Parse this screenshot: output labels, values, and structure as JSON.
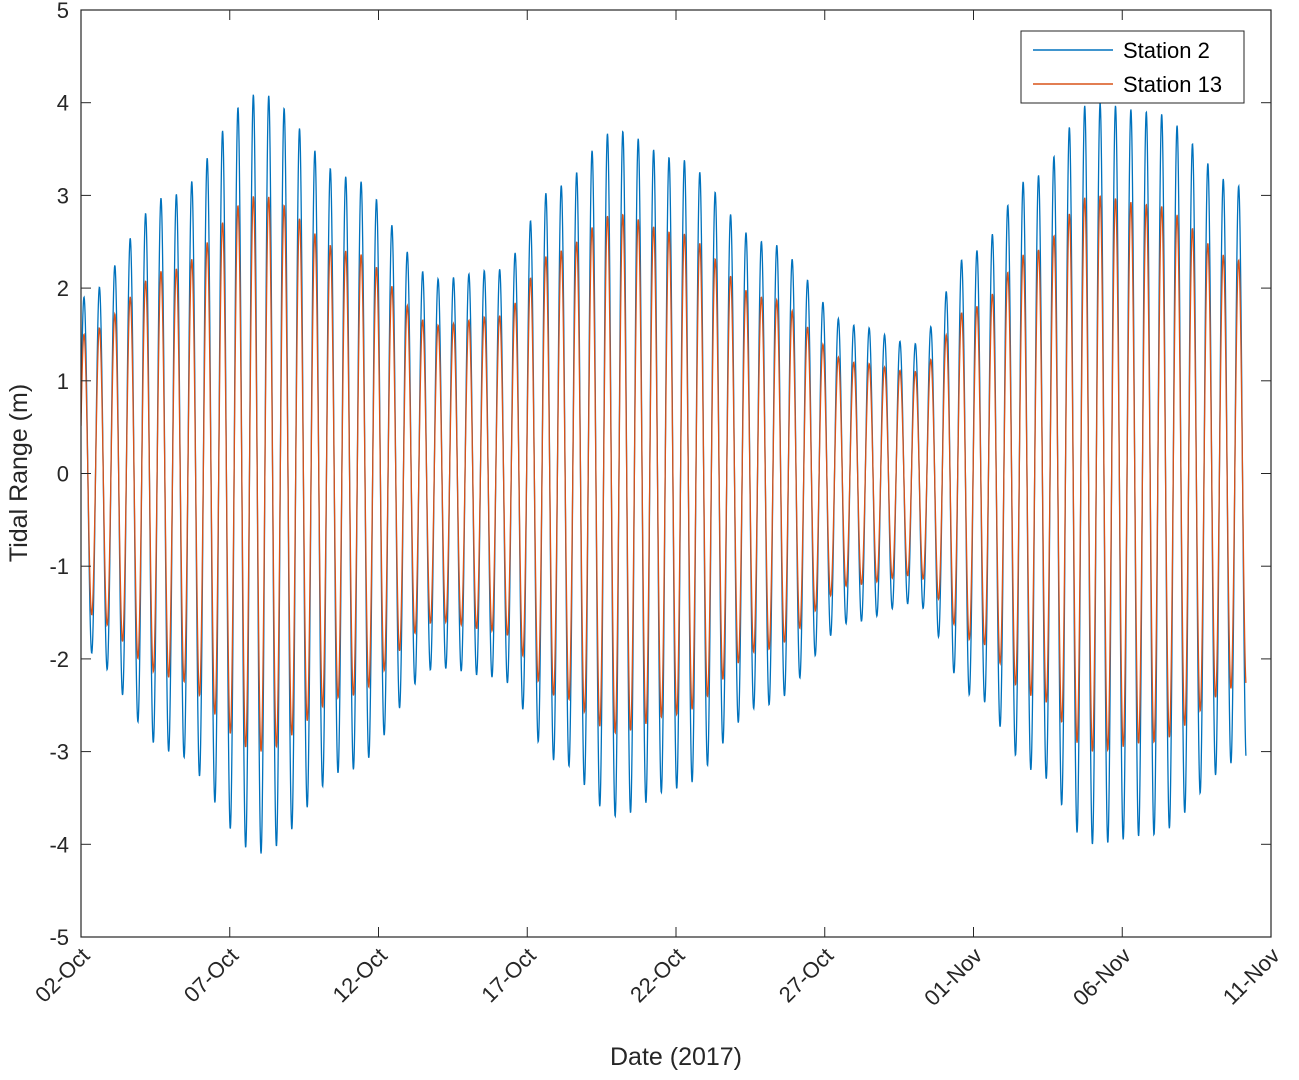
{
  "chart_data": {
    "type": "line",
    "title": "",
    "xlabel": "Date (2017)",
    "ylabel": "Tidal Range (m)",
    "ylim": [
      -5,
      5
    ],
    "yticks": [
      -5,
      -4,
      -3,
      -2,
      -1,
      0,
      1,
      2,
      3,
      4,
      5
    ],
    "xlim": [
      "2017-10-02",
      "2017-11-11"
    ],
    "xtick_labels": [
      "02-Oct",
      "07-Oct",
      "12-Oct",
      "17-Oct",
      "22-Oct",
      "27-Oct",
      "01-Nov",
      "06-Nov",
      "11-Nov"
    ],
    "x_end": "2017-11-10T04:00",
    "tidal_period_hours": 12.42,
    "legend_position": "top-right",
    "grid": false,
    "series": [
      {
        "name": "Station 2",
        "color": "#0072BD",
        "amplitude_envelope": [
          [
            "2017-10-02",
            1.9
          ],
          [
            "2017-10-05",
            3.0
          ],
          [
            "2017-10-08",
            4.1
          ],
          [
            "2017-10-11",
            3.2
          ],
          [
            "2017-10-14",
            2.1
          ],
          [
            "2017-10-16",
            2.2
          ],
          [
            "2017-10-18",
            3.1
          ],
          [
            "2017-10-20",
            3.7
          ],
          [
            "2017-10-22",
            3.4
          ],
          [
            "2017-10-25",
            2.5
          ],
          [
            "2017-10-28",
            1.6
          ],
          [
            "2017-10-30",
            1.4
          ],
          [
            "2017-11-01",
            2.4
          ],
          [
            "2017-11-03",
            3.2
          ],
          [
            "2017-11-05",
            4.0
          ],
          [
            "2017-11-07",
            3.9
          ],
          [
            "2017-11-10",
            3.1
          ]
        ]
      },
      {
        "name": "Station 13",
        "color": "#D95319",
        "amplitude_envelope": [
          [
            "2017-10-02",
            1.5
          ],
          [
            "2017-10-05",
            2.2
          ],
          [
            "2017-10-08",
            3.0
          ],
          [
            "2017-10-11",
            2.4
          ],
          [
            "2017-10-14",
            1.6
          ],
          [
            "2017-10-16",
            1.7
          ],
          [
            "2017-10-18",
            2.4
          ],
          [
            "2017-10-20",
            2.8
          ],
          [
            "2017-10-22",
            2.6
          ],
          [
            "2017-10-25",
            1.9
          ],
          [
            "2017-10-28",
            1.2
          ],
          [
            "2017-10-30",
            1.1
          ],
          [
            "2017-11-01",
            1.8
          ],
          [
            "2017-11-03",
            2.4
          ],
          [
            "2017-11-05",
            3.0
          ],
          [
            "2017-11-07",
            2.9
          ],
          [
            "2017-11-10",
            2.3
          ]
        ]
      }
    ]
  }
}
